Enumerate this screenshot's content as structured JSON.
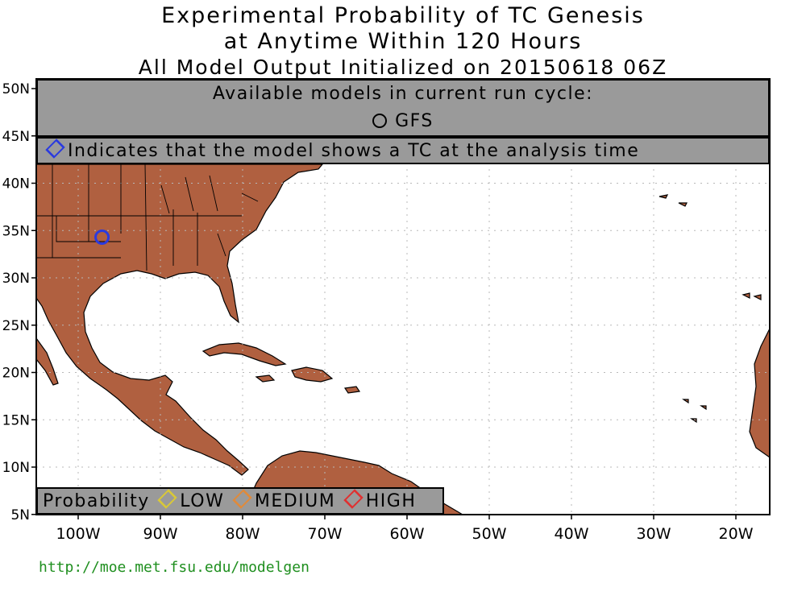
{
  "title": {
    "line1": "Experimental Probability of TC Genesis",
    "line2": "at Anytime Within 120 Hours",
    "line3": "All Model Output Initialized on 20150618 06Z"
  },
  "models_panel": {
    "heading": "Available models in current run cycle:",
    "model": "GFS"
  },
  "analysis_note": "Indicates that the model shows a TC at the analysis time",
  "legend": {
    "label": "Probability",
    "low": "LOW",
    "medium": "MEDIUM",
    "high": "HIGH",
    "low_color": "#d8c838",
    "medium_color": "#e08a3a",
    "high_color": "#e03030",
    "analysis_color": "#2a3adf"
  },
  "colors": {
    "land": "#b06040",
    "ocean": "#ffffff",
    "panel": "#9a9a9a"
  },
  "axes": {
    "lat_labels": [
      "50N",
      "45N",
      "40N",
      "35N",
      "30N",
      "25N",
      "20N",
      "15N",
      "10N",
      "5N"
    ],
    "lon_labels": [
      "100W",
      "90W",
      "80W",
      "70W",
      "60W",
      "50W",
      "40W",
      "30W",
      "20W"
    ]
  },
  "markers": [
    {
      "model": "GFS",
      "lat": 34.3,
      "lon": -97.1,
      "shape": "circle",
      "color": "#2a3adf"
    }
  ],
  "url": "http://moe.met.fsu.edu/modelgen"
}
